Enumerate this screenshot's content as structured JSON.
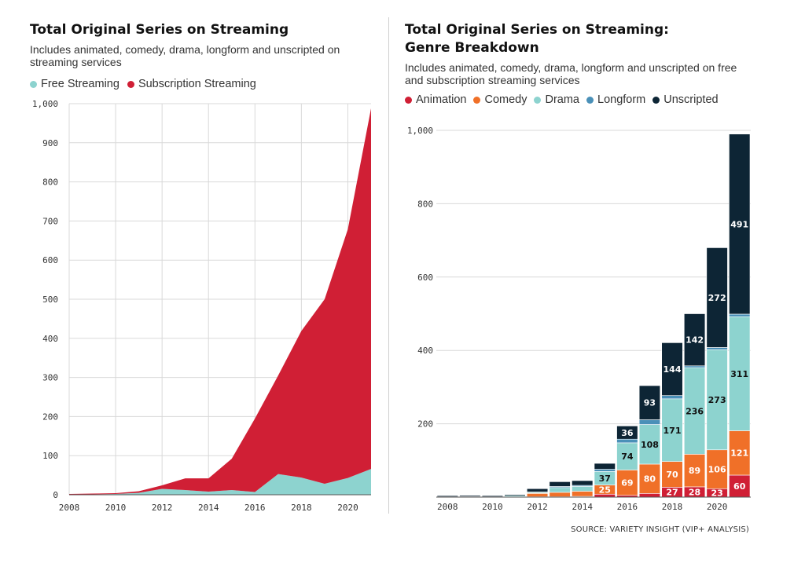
{
  "left": {
    "title": "Total Original Series on Streaming",
    "subtitle": "Includes animated, comedy, drama, longform and unscripted on streaming services",
    "legend": [
      {
        "label": "Free Streaming",
        "color": "#8dd3cf"
      },
      {
        "label": "Subscription Streaming",
        "color": "#d01f35"
      }
    ]
  },
  "right": {
    "title_line1": "Total Original Series on Streaming:",
    "title_line2": "Genre Breakdown",
    "subtitle": "Includes animated, comedy, drama, longform and unscripted on free and subscription streaming services",
    "legend": [
      {
        "label": "Animation",
        "color": "#d01f35"
      },
      {
        "label": "Comedy",
        "color": "#f07028"
      },
      {
        "label": "Drama",
        "color": "#8dd3cf"
      },
      {
        "label": "Longform",
        "color": "#4a90b8"
      },
      {
        "label": "Unscripted",
        "color": "#0d2535"
      }
    ]
  },
  "source": "SOURCE: VARIETY INSIGHT (VIP+ ANALYSIS)",
  "chart_data": [
    {
      "type": "area",
      "stacked": true,
      "title": "Total Original Series on Streaming",
      "x": [
        2008,
        2009,
        2010,
        2011,
        2012,
        2013,
        2014,
        2015,
        2016,
        2017,
        2018,
        2019,
        2020,
        2021
      ],
      "xticks": [
        "2008",
        "2010",
        "2012",
        "2014",
        "2016",
        "2018",
        "2020"
      ],
      "yticks": [
        "0",
        "100",
        "200",
        "300",
        "400",
        "500",
        "600",
        "700",
        "800",
        "900",
        "1,000"
      ],
      "ylim": [
        0,
        1000
      ],
      "grid": true,
      "series": [
        {
          "name": "Free Streaming",
          "color": "#8dd3cf",
          "values": [
            0,
            1,
            2,
            5,
            15,
            12,
            8,
            12,
            7,
            53,
            44,
            28,
            43,
            66
          ]
        },
        {
          "name": "Subscription Streaming",
          "color": "#d01f35",
          "values": [
            2,
            2,
            2,
            4,
            9,
            30,
            34,
            80,
            188,
            252,
            375,
            472,
            636,
            922
          ]
        }
      ]
    },
    {
      "type": "bar",
      "stacked": true,
      "title": "Total Original Series on Streaming: Genre Breakdown",
      "x": [
        2008,
        2009,
        2010,
        2011,
        2012,
        2013,
        2014,
        2015,
        2016,
        2017,
        2018,
        2019,
        2020,
        2021
      ],
      "xticks": [
        "2008",
        "2010",
        "2012",
        "2014",
        "2016",
        "2018",
        "2020"
      ],
      "yticks": [
        "200",
        "400",
        "600",
        "800",
        "1,000"
      ],
      "ylim": [
        0,
        1000
      ],
      "grid": true,
      "series": [
        {
          "name": "Animation",
          "color": "#d01f35",
          "values": [
            0,
            0,
            0,
            0,
            1,
            1,
            2,
            8,
            5,
            10,
            27,
            28,
            23,
            60
          ]
        },
        {
          "name": "Comedy",
          "color": "#f07028",
          "values": [
            0,
            1,
            0,
            1,
            9,
            12,
            14,
            25,
            69,
            80,
            70,
            89,
            106,
            121
          ]
        },
        {
          "name": "Drama",
          "color": "#8dd3cf",
          "values": [
            1,
            1,
            1,
            3,
            3,
            13,
            13,
            37,
            74,
            108,
            171,
            236,
            273,
            311
          ]
        },
        {
          "name": "Longform",
          "color": "#4a90b8",
          "values": [
            0,
            0,
            0,
            0,
            1,
            3,
            3,
            6,
            10,
            13,
            9,
            5,
            6,
            7
          ]
        },
        {
          "name": "Unscripted",
          "color": "#0d2535",
          "values": [
            3,
            3,
            3,
            3,
            9,
            13,
            13,
            16,
            36,
            93,
            144,
            142,
            272,
            491
          ]
        }
      ]
    }
  ]
}
